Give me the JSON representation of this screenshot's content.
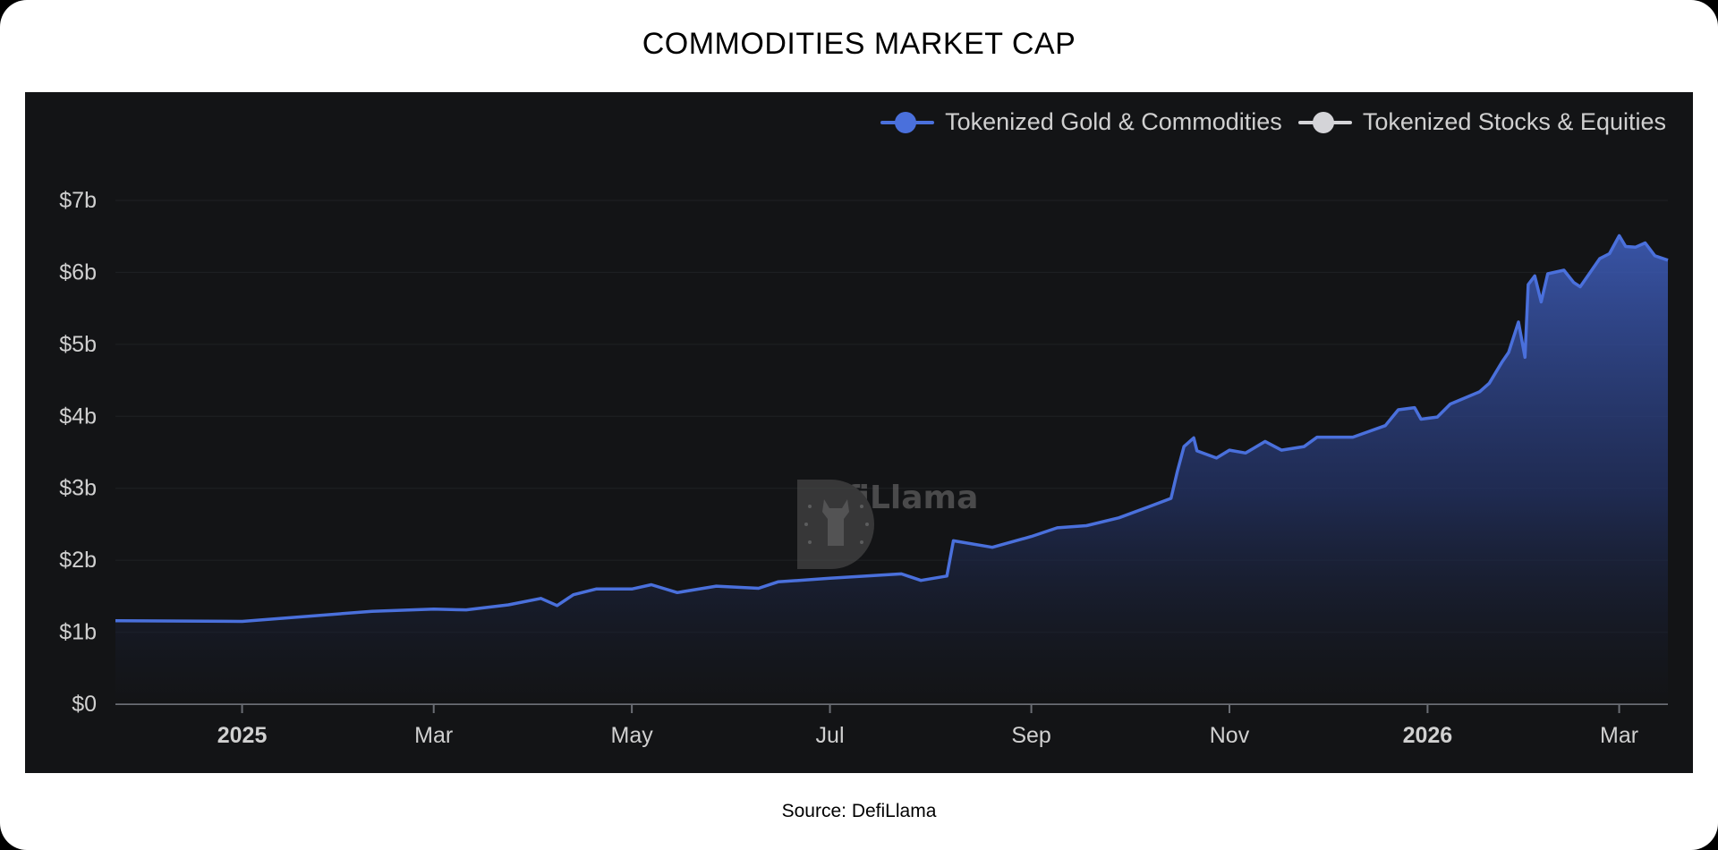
{
  "title": "COMMODITIES MARKET CAP",
  "source": "Source: DefiLlama",
  "watermark": "DefiLlama",
  "colors": {
    "gold_series": "#4a70dc",
    "stocks_series": "#d4d4d8",
    "panel_bg": "#131416"
  },
  "chart_data": {
    "type": "area",
    "title": "",
    "xlabel": "",
    "ylabel": "",
    "ylim": [
      0,
      7
    ],
    "xlim": [
      "2024-11-23",
      "2026-03-16"
    ],
    "grid": true,
    "legend_position": "top-right",
    "y_ticks": [
      {
        "value": 0,
        "label": "$0"
      },
      {
        "value": 1,
        "label": "$1b"
      },
      {
        "value": 2,
        "label": "$2b"
      },
      {
        "value": 3,
        "label": "$3b"
      },
      {
        "value": 4,
        "label": "$4b"
      },
      {
        "value": 5,
        "label": "$5b"
      },
      {
        "value": 6,
        "label": "$6b"
      },
      {
        "value": 7,
        "label": "$7b"
      }
    ],
    "x_ticks": [
      {
        "date": "2025-01-01",
        "label": "2025",
        "bold": true
      },
      {
        "date": "2025-03-01",
        "label": "Mar",
        "bold": false
      },
      {
        "date": "2025-05-01",
        "label": "May",
        "bold": false
      },
      {
        "date": "2025-07-01",
        "label": "Jul",
        "bold": false
      },
      {
        "date": "2025-09-01",
        "label": "Sep",
        "bold": false
      },
      {
        "date": "2025-11-01",
        "label": "Nov",
        "bold": false
      },
      {
        "date": "2026-01-01",
        "label": "2026",
        "bold": true
      },
      {
        "date": "2026-03-01",
        "label": "Mar",
        "bold": false
      }
    ],
    "series": [
      {
        "name": "Tokenized Gold & Commodities",
        "color": "#4a70dc",
        "unit": "billion USD",
        "points": [
          [
            "2024-11-23",
            1.16
          ],
          [
            "2025-01-01",
            1.15
          ],
          [
            "2025-02-10",
            1.29
          ],
          [
            "2025-03-01",
            1.32
          ],
          [
            "2025-03-11",
            1.31
          ],
          [
            "2025-03-24",
            1.38
          ],
          [
            "2025-04-03",
            1.47
          ],
          [
            "2025-04-08",
            1.37
          ],
          [
            "2025-04-13",
            1.52
          ],
          [
            "2025-04-20",
            1.6
          ],
          [
            "2025-05-01",
            1.6
          ],
          [
            "2025-05-07",
            1.66
          ],
          [
            "2025-05-15",
            1.55
          ],
          [
            "2025-05-27",
            1.64
          ],
          [
            "2025-06-09",
            1.61
          ],
          [
            "2025-06-15",
            1.7
          ],
          [
            "2025-07-01",
            1.75
          ],
          [
            "2025-07-23",
            1.81
          ],
          [
            "2025-07-29",
            1.72
          ],
          [
            "2025-08-06",
            1.78
          ],
          [
            "2025-08-08",
            2.27
          ],
          [
            "2025-08-20",
            2.18
          ],
          [
            "2025-09-01",
            2.33
          ],
          [
            "2025-09-09",
            2.45
          ],
          [
            "2025-09-18",
            2.48
          ],
          [
            "2025-09-28",
            2.59
          ],
          [
            "2025-10-07",
            2.74
          ],
          [
            "2025-10-14",
            2.86
          ],
          [
            "2025-10-16",
            3.24
          ],
          [
            "2025-10-18",
            3.58
          ],
          [
            "2025-10-21",
            3.7
          ],
          [
            "2025-10-22",
            3.52
          ],
          [
            "2025-10-28",
            3.42
          ],
          [
            "2025-11-01",
            3.53
          ],
          [
            "2025-11-06",
            3.49
          ],
          [
            "2025-11-12",
            3.65
          ],
          [
            "2025-11-17",
            3.53
          ],
          [
            "2025-11-24",
            3.58
          ],
          [
            "2025-11-28",
            3.71
          ],
          [
            "2025-12-09",
            3.71
          ],
          [
            "2025-12-19",
            3.87
          ],
          [
            "2025-12-23",
            4.09
          ],
          [
            "2025-12-28",
            4.12
          ],
          [
            "2025-12-30",
            3.96
          ],
          [
            "2026-01-04",
            3.99
          ],
          [
            "2026-01-08",
            4.17
          ],
          [
            "2026-01-17",
            4.34
          ],
          [
            "2026-01-20",
            4.46
          ],
          [
            "2026-01-24",
            4.76
          ],
          [
            "2026-01-26",
            4.89
          ],
          [
            "2026-01-29",
            5.31
          ],
          [
            "2026-01-31",
            4.82
          ],
          [
            "2026-02-01",
            5.83
          ],
          [
            "2026-02-03",
            5.95
          ],
          [
            "2026-02-05",
            5.59
          ],
          [
            "2026-02-07",
            5.98
          ],
          [
            "2026-02-12",
            6.03
          ],
          [
            "2026-02-15",
            5.86
          ],
          [
            "2026-02-17",
            5.8
          ],
          [
            "2026-02-23",
            6.19
          ],
          [
            "2026-02-26",
            6.26
          ],
          [
            "2026-03-01",
            6.51
          ],
          [
            "2026-03-03",
            6.36
          ],
          [
            "2026-03-06",
            6.35
          ],
          [
            "2026-03-09",
            6.41
          ],
          [
            "2026-03-12",
            6.23
          ],
          [
            "2026-03-16",
            6.17
          ]
        ]
      },
      {
        "name": "Tokenized Stocks & Equities",
        "color": "#d4d4d8",
        "points": []
      }
    ]
  }
}
